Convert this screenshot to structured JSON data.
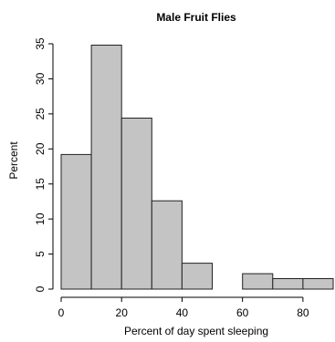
{
  "chart_data": {
    "type": "bar",
    "title": "Male Fruit Flies",
    "xlabel": "Percent of day spent sleeping",
    "ylabel": "Percent",
    "xlim": [
      0,
      90
    ],
    "ylim": [
      0,
      35
    ],
    "x_ticks": [
      0,
      20,
      40,
      60,
      80
    ],
    "y_ticks": [
      0,
      5,
      10,
      15,
      20,
      25,
      30,
      35
    ],
    "bins": [
      {
        "start": 0,
        "end": 10,
        "value": 19.2
      },
      {
        "start": 10,
        "end": 20,
        "value": 34.8
      },
      {
        "start": 20,
        "end": 30,
        "value": 24.4
      },
      {
        "start": 30,
        "end": 40,
        "value": 12.6
      },
      {
        "start": 40,
        "end": 50,
        "value": 3.7
      },
      {
        "start": 50,
        "end": 60,
        "value": 0
      },
      {
        "start": 60,
        "end": 70,
        "value": 2.2
      },
      {
        "start": 70,
        "end": 80,
        "value": 1.5
      },
      {
        "start": 80,
        "end": 90,
        "value": 1.5
      }
    ],
    "colors": {
      "bar_fill": "#c4c4c4",
      "bar_stroke": "#222222"
    }
  }
}
